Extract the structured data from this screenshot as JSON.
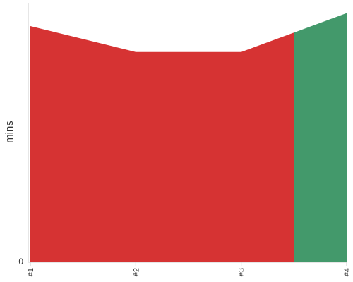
{
  "chart_data": {
    "type": "area",
    "categories": [
      "#1",
      "#2",
      "#3",
      "#4"
    ],
    "ylabel": "mins",
    "xlabel": "",
    "y_tick_labels": [
      "0"
    ],
    "ylim": [
      0,
      100
    ],
    "grid": false,
    "legend": "none",
    "series": [
      {
        "color": "#d63333",
        "points": [
          {
            "x": 1,
            "y": 91
          },
          {
            "x": 2,
            "y": 81
          },
          {
            "x": 3,
            "y": 81
          },
          {
            "x": 3.5,
            "y": 88.5
          }
        ]
      },
      {
        "color": "#43996b",
        "points": [
          {
            "x": 3.5,
            "y": 88.5
          },
          {
            "x": 4,
            "y": 96
          }
        ]
      }
    ]
  }
}
